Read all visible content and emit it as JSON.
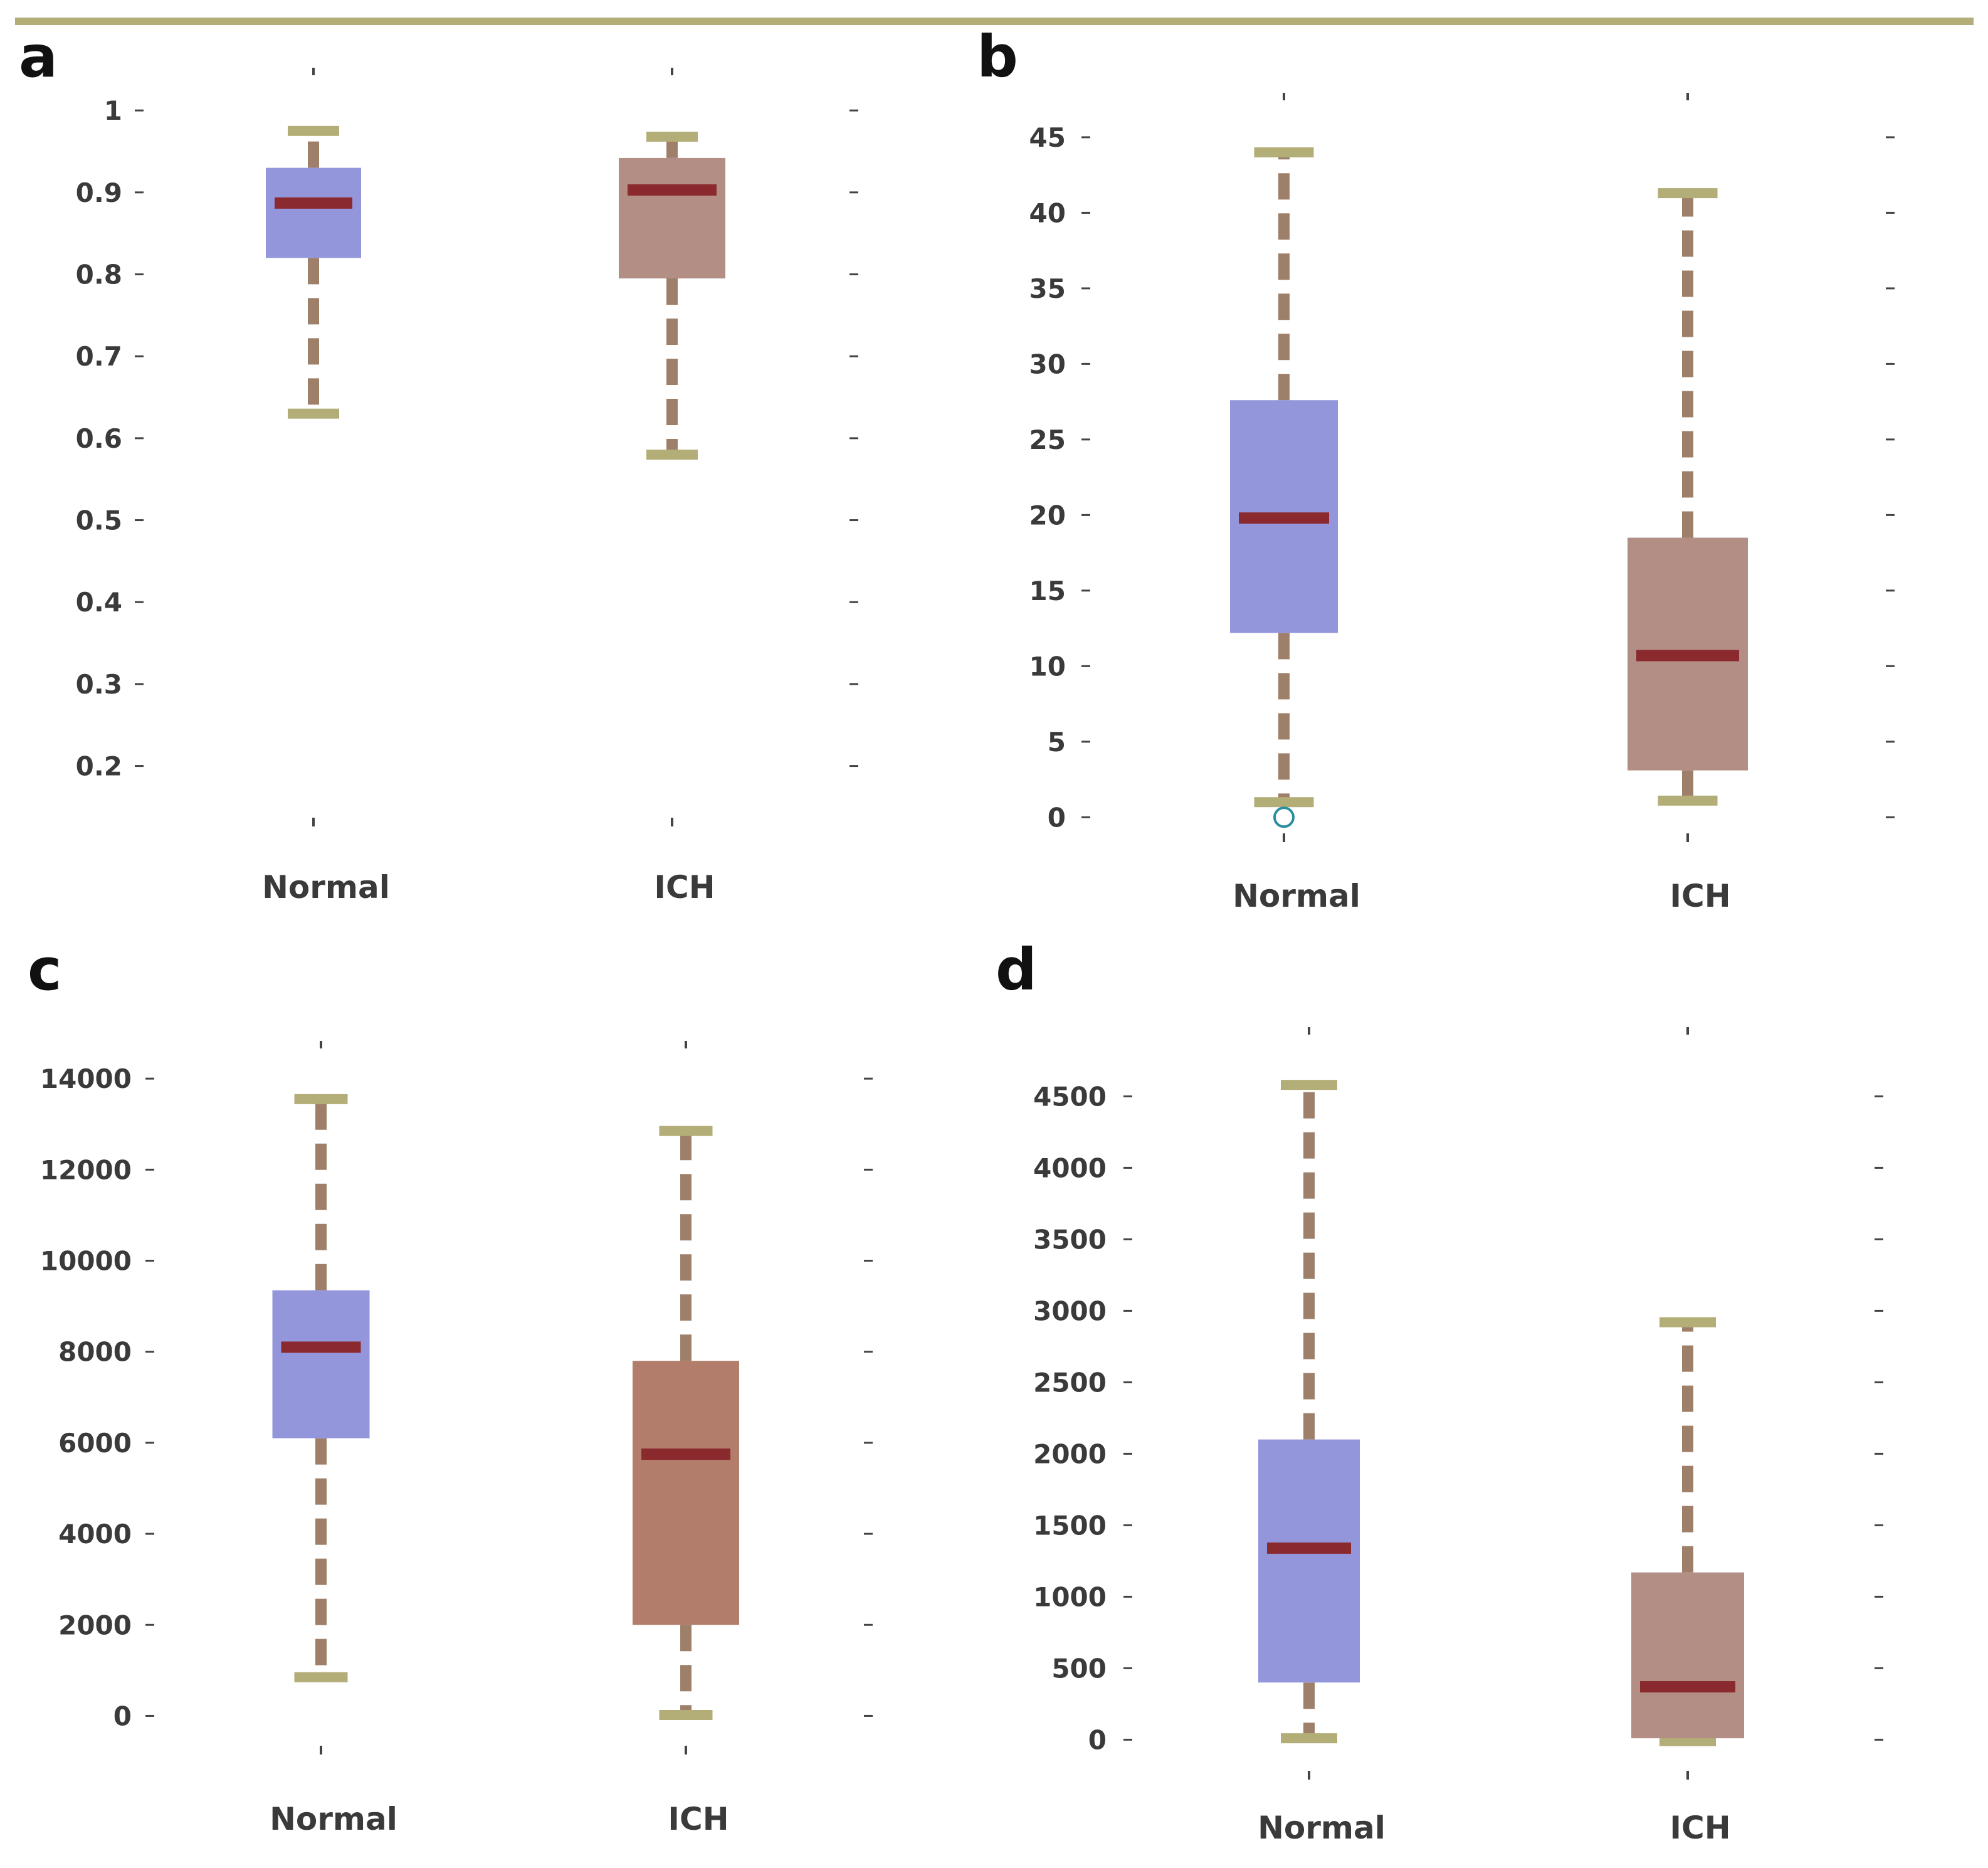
{
  "figure": {
    "colors": {
      "normal_box": "#9496dc",
      "ich_box_a": "#b38e84",
      "ich_box_b": "#b38e84",
      "ich_box_c": "#b27d6b",
      "ich_box_d": "#b38e84",
      "median": "#8b2a2e",
      "whisker": "#9e806a",
      "cap": "#b3ae78",
      "outlier": "#2c8fa0",
      "tick": "#444444",
      "rule": "#b3ae78"
    }
  },
  "chart_data": [
    {
      "panel": "a",
      "type": "box",
      "categories": [
        "Normal",
        "ICH"
      ],
      "yticks": [
        0.2,
        0.3,
        0.4,
        0.5,
        0.6,
        0.7,
        0.8,
        0.9,
        1
      ],
      "ytick_labels": [
        "0.2",
        "0.3",
        "0.4",
        "0.5",
        "0.6",
        "0.7",
        "0.8",
        "0.9",
        "1"
      ],
      "ylim": [
        0.14,
        1.02
      ],
      "boxes": [
        {
          "name": "Normal",
          "min": 0.63,
          "q1": 0.82,
          "median": 0.887,
          "q3": 0.93,
          "max": 0.975
        },
        {
          "name": "ICH",
          "min": 0.58,
          "q1": 0.795,
          "median": 0.903,
          "q3": 0.942,
          "max": 0.968
        }
      ],
      "outliers": []
    },
    {
      "panel": "b",
      "type": "box",
      "categories": [
        "Normal",
        "ICH"
      ],
      "yticks": [
        0,
        5,
        10,
        15,
        20,
        25,
        30,
        35,
        40,
        45
      ],
      "ytick_labels": [
        "0",
        "5",
        "10",
        "15",
        "20",
        "25",
        "30",
        "35",
        "40",
        "45"
      ],
      "ylim": [
        -0.9,
        46.2
      ],
      "boxes": [
        {
          "name": "Normal",
          "min": 1,
          "q1": 12.2,
          "median": 19.8,
          "q3": 27.6,
          "max": 44
        },
        {
          "name": "ICH",
          "min": 1.1,
          "q1": 3.1,
          "median": 10.7,
          "q3": 18.5,
          "max": 41.3
        }
      ],
      "outliers": [
        {
          "category": "Normal",
          "value": 0
        }
      ]
    },
    {
      "panel": "c",
      "type": "box",
      "categories": [
        "Normal",
        "ICH"
      ],
      "yticks": [
        0,
        2000,
        4000,
        6000,
        8000,
        10000,
        12000,
        14000
      ],
      "ytick_labels": [
        "0",
        "2000",
        "4000",
        "6000",
        "8000",
        "10000",
        "12000",
        "14000"
      ],
      "ylim": [
        -600,
        14250
      ],
      "boxes": [
        {
          "name": "Normal",
          "min": 850,
          "q1": 6100,
          "median": 8100,
          "q3": 9350,
          "max": 13550
        },
        {
          "name": "ICH",
          "min": 20,
          "q1": 2000,
          "median": 5750,
          "q3": 7800,
          "max": 12850
        }
      ],
      "outliers": []
    },
    {
      "panel": "d",
      "type": "box",
      "categories": [
        "Normal",
        "ICH"
      ],
      "yticks": [
        0,
        500,
        1000,
        1500,
        2000,
        2500,
        3000,
        3500,
        4000,
        4500
      ],
      "ytick_labels": [
        "0",
        "500",
        "1000",
        "1500",
        "2000",
        "2500",
        "3000",
        "3500",
        "4000",
        "4500"
      ],
      "ylim": [
        -200,
        4800
      ],
      "boxes": [
        {
          "name": "Normal",
          "min": 10,
          "q1": 400,
          "median": 1340,
          "q3": 2100,
          "max": 4580
        },
        {
          "name": "ICH",
          "min": -10,
          "q1": 10,
          "median": 370,
          "q3": 1170,
          "max": 2920
        }
      ],
      "outliers": []
    }
  ]
}
